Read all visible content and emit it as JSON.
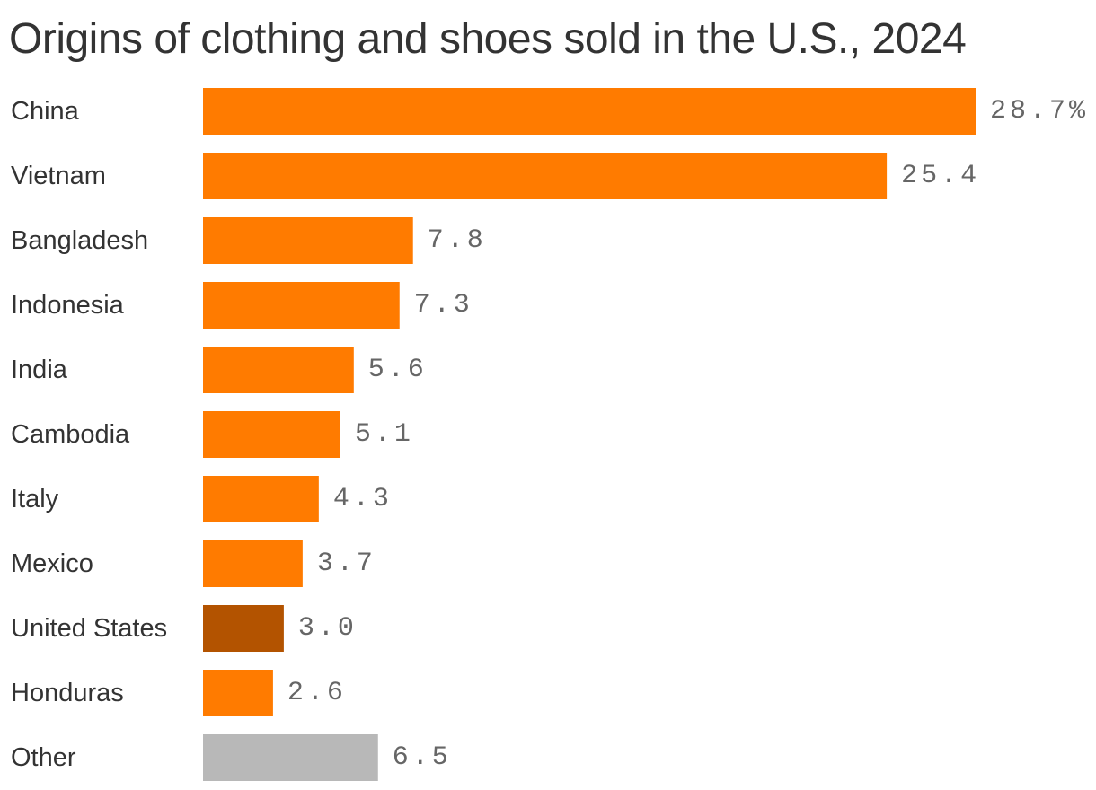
{
  "chart_data": {
    "type": "bar",
    "orientation": "horizontal",
    "title": "Origins of clothing and shoes sold in the U.S., 2024",
    "xlabel": "",
    "ylabel": "",
    "categories": [
      "China",
      "Vietnam",
      "Bangladesh",
      "Indonesia",
      "India",
      "Cambodia",
      "Italy",
      "Mexico",
      "United States",
      "Honduras",
      "Other"
    ],
    "values": [
      28.7,
      25.4,
      7.8,
      7.3,
      5.6,
      5.1,
      4.3,
      3.7,
      3.0,
      2.6,
      6.5
    ],
    "value_labels": [
      "28.7%",
      "25.4",
      "7.8",
      "7.3",
      "5.6",
      "5.1",
      "4.3",
      "3.7",
      "3.0",
      "2.6",
      "6.5"
    ],
    "bar_colors": [
      "#ff7b00",
      "#ff7b00",
      "#ff7b00",
      "#ff7b00",
      "#ff7b00",
      "#ff7b00",
      "#ff7b00",
      "#ff7b00",
      "#b35300",
      "#ff7b00",
      "#b8b8b8"
    ],
    "xlim": [
      0,
      28.7
    ],
    "grid": false,
    "legend": "none"
  },
  "colors": {
    "accent": "#ff7b00",
    "highlight": "#b35300",
    "other": "#b8b8b8",
    "title_text": "#333333",
    "value_text": "#666666"
  }
}
